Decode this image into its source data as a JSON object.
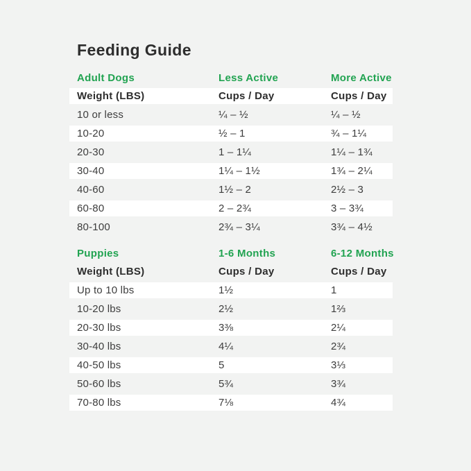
{
  "page": {
    "title": "Feeding Guide",
    "background_color": "#f2f3f2",
    "accent_green": "#21a351",
    "row_highlight_color": "#ffffff"
  },
  "adult": {
    "section_headers": [
      "Adult Dogs",
      "Less Active",
      "More Active"
    ],
    "col_headers": [
      "Weight (LBS)",
      "Cups / Day",
      "Cups / Day"
    ],
    "rows": [
      {
        "weight": "10 or less",
        "less": "¼ – ½",
        "more": "¼ – ½"
      },
      {
        "weight": "10-20",
        "less": "½ – 1",
        "more": "¾ – 1¼"
      },
      {
        "weight": "20-30",
        "less": "1 – 1¼",
        "more": "1¼ – 1¾"
      },
      {
        "weight": "30-40",
        "less": "1¼ – 1½",
        "more": "1¾ – 2¼"
      },
      {
        "weight": "40-60",
        "less": "1½ – 2",
        "more": "2½ – 3"
      },
      {
        "weight": "60-80",
        "less": "2 – 2¾",
        "more": "3 – 3¾"
      },
      {
        "weight": "80-100",
        "less": "2¾ – 3¼",
        "more": "3¾ – 4½"
      }
    ]
  },
  "puppies": {
    "section_headers": [
      "Puppies",
      "1-6 Months",
      "6-12 Months"
    ],
    "col_headers": [
      "Weight (LBS)",
      "Cups / Day",
      "Cups / Day"
    ],
    "rows": [
      {
        "weight": "Up to 10 lbs",
        "m1_6": "1½",
        "m6_12": "1"
      },
      {
        "weight": "10-20 lbs",
        "m1_6": "2½",
        "m6_12": "1⅔"
      },
      {
        "weight": "20-30 lbs",
        "m1_6": "3⅜",
        "m6_12": "2¼"
      },
      {
        "weight": "30-40 lbs",
        "m1_6": "4¼",
        "m6_12": "2¾"
      },
      {
        "weight": "40-50 lbs",
        "m1_6": "5",
        "m6_12": "3⅓"
      },
      {
        "weight": "50-60 lbs",
        "m1_6": "5¾",
        "m6_12": "3¾"
      },
      {
        "weight": "70-80 lbs",
        "m1_6": "7⅛",
        "m6_12": "4¾"
      }
    ]
  }
}
